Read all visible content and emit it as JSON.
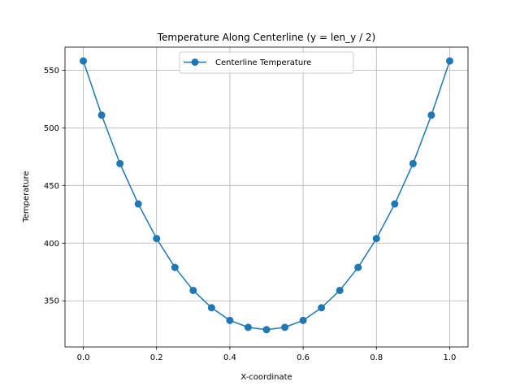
{
  "chart_data": {
    "type": "line",
    "title": "Temperature Along Centerline (y = len_y / 2)",
    "xlabel": "X-coordinate",
    "ylabel": "Temperature",
    "xlim": [
      -0.05,
      1.05
    ],
    "ylim": [
      310,
      570
    ],
    "xticks": [
      "0.0",
      "0.2",
      "0.4",
      "0.6",
      "0.8",
      "1.0"
    ],
    "yticks": [
      "350",
      "400",
      "450",
      "500",
      "550"
    ],
    "grid": true,
    "legend_position": "top-center",
    "series": [
      {
        "name": "Centerline Temperature",
        "color": "#1f77b4",
        "marker": "circle",
        "x": [
          0.0,
          0.05,
          0.1,
          0.15,
          0.2,
          0.25,
          0.3,
          0.35,
          0.4,
          0.45,
          0.5,
          0.55,
          0.6,
          0.65,
          0.7,
          0.75,
          0.8,
          0.85,
          0.9,
          0.95,
          1.0
        ],
        "y": [
          558,
          511,
          469,
          434,
          404,
          379,
          359,
          344,
          333,
          327,
          325,
          327,
          333,
          344,
          359,
          379,
          404,
          434,
          469,
          511,
          558
        ]
      }
    ]
  }
}
